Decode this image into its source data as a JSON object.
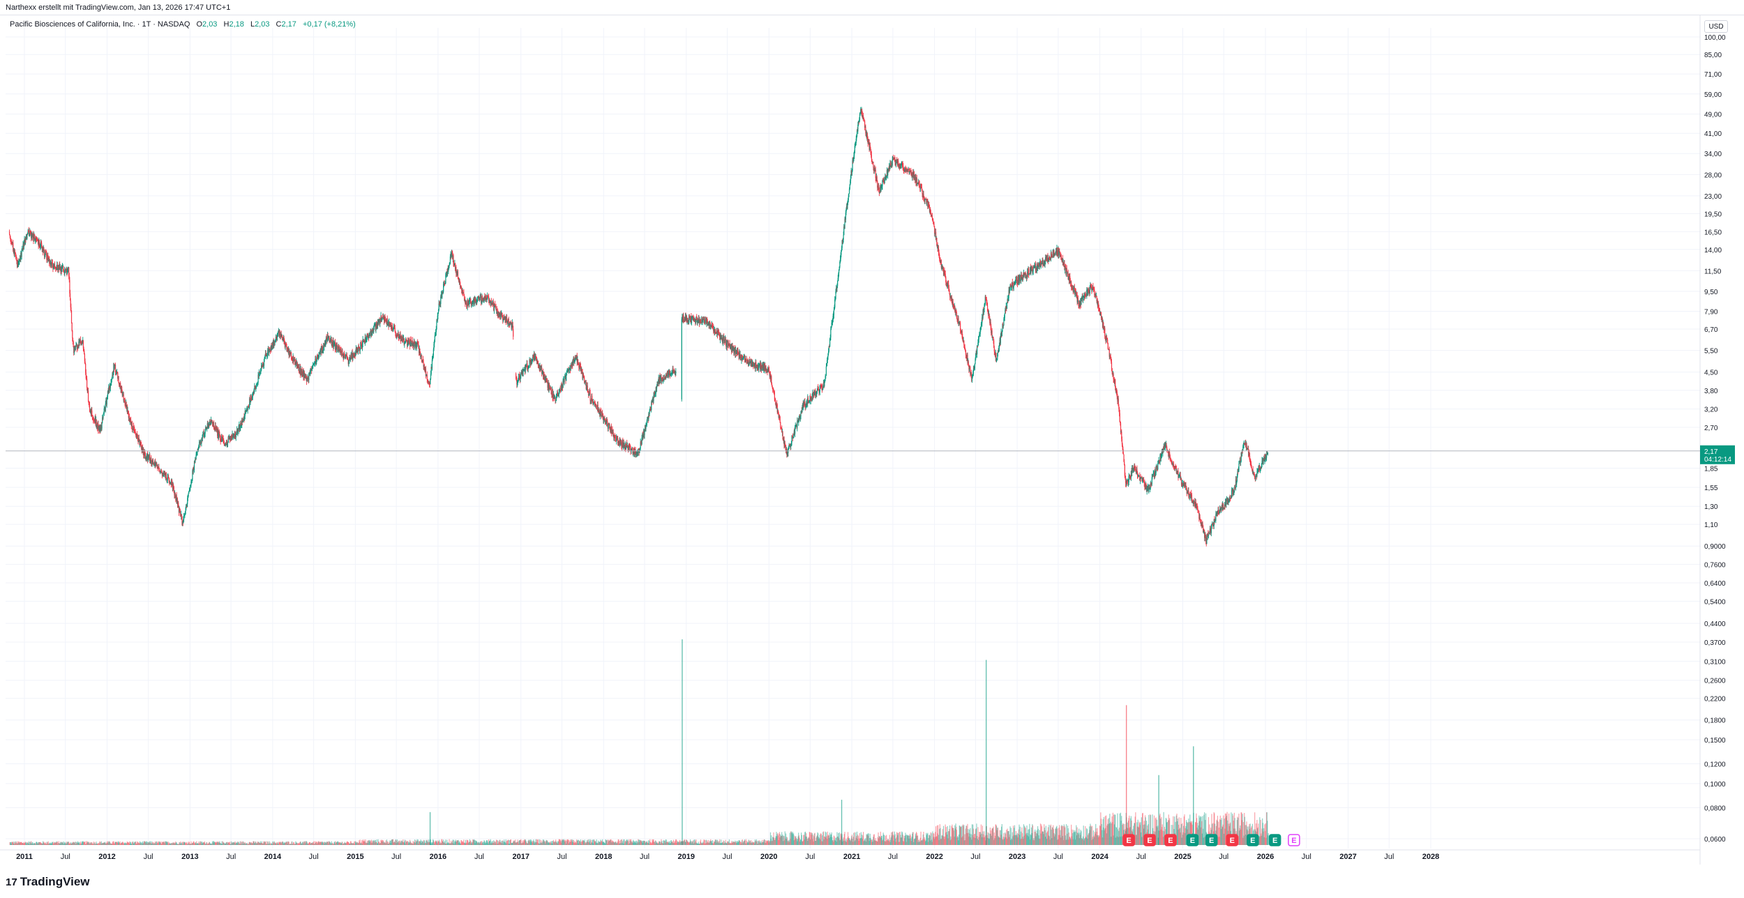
{
  "header": {
    "credit": "Narthexx erstellt mit TradingView.com, Jan 13, 2026 17:47 UTC+1"
  },
  "legend": {
    "symbol": "Pacific Biosciences of California, Inc. · 1T · NASDAQ",
    "open_label": "O",
    "open_value": "2,03",
    "high_label": "H",
    "high_value": "2,18",
    "low_label": "L",
    "low_value": "2,03",
    "close_label": "C",
    "close_value": "2,17",
    "change": "+0,17 (+8,21%)"
  },
  "currency": "USD",
  "price_tag": {
    "value": "2,17",
    "countdown": "04:12:14"
  },
  "footer": {
    "logo_mark": "17",
    "brand": "TradingView"
  },
  "colors": {
    "up": "#089981",
    "down": "#f23645",
    "grid": "#f0f3fa",
    "current_line": "#9598a1",
    "tag_bg": "#089981",
    "earnings_up": "#089981",
    "earnings_down": "#f23645",
    "earnings_next": "#e040fb"
  },
  "chart_data": {
    "type": "candlestick",
    "scale": "log",
    "ylim": [
      0.06,
      105
    ],
    "y_ticks": [
      "100,00",
      "85,00",
      "71,00",
      "59,00",
      "49,00",
      "41,00",
      "34,00",
      "28,00",
      "23,00",
      "19,50",
      "16,50",
      "14,00",
      "11,50",
      "9,50",
      "7,90",
      "6,70",
      "5,50",
      "4,50",
      "3,80",
      "3,20",
      "2,70",
      "1,85",
      "1,55",
      "1,30",
      "1,10",
      "0,9000",
      "0,7600",
      "0,6400",
      "0,5400",
      "0,4400",
      "0,3700",
      "0,3100",
      "0,2600",
      "0,2200",
      "0,1800",
      "0,1500",
      "0,1200",
      "0,1000",
      "0,0800",
      "0,0600"
    ],
    "x_range": [
      "2011-01-01",
      "2028-07-01"
    ],
    "x_ticks": [
      {
        "label": "2011",
        "date": "2011-01-01",
        "bold": true
      },
      {
        "label": "Jul",
        "date": "2011-07-01",
        "bold": false
      },
      {
        "label": "2012",
        "date": "2012-01-01",
        "bold": true
      },
      {
        "label": "Jul",
        "date": "2012-07-01",
        "bold": false
      },
      {
        "label": "2013",
        "date": "2013-01-01",
        "bold": true
      },
      {
        "label": "Jul",
        "date": "2013-07-01",
        "bold": false
      },
      {
        "label": "2014",
        "date": "2014-01-01",
        "bold": true
      },
      {
        "label": "Jul",
        "date": "2014-07-01",
        "bold": false
      },
      {
        "label": "2015",
        "date": "2015-01-01",
        "bold": true
      },
      {
        "label": "Jul",
        "date": "2015-07-01",
        "bold": false
      },
      {
        "label": "2016",
        "date": "2016-01-01",
        "bold": true
      },
      {
        "label": "Jul",
        "date": "2016-07-01",
        "bold": false
      },
      {
        "label": "2017",
        "date": "2017-01-01",
        "bold": true
      },
      {
        "label": "Jul",
        "date": "2017-07-01",
        "bold": false
      },
      {
        "label": "2018",
        "date": "2018-01-01",
        "bold": true
      },
      {
        "label": "Jul",
        "date": "2018-07-01",
        "bold": false
      },
      {
        "label": "2019",
        "date": "2019-01-01",
        "bold": true
      },
      {
        "label": "Jul",
        "date": "2019-07-01",
        "bold": false
      },
      {
        "label": "2020",
        "date": "2020-01-01",
        "bold": true
      },
      {
        "label": "Jul",
        "date": "2020-07-01",
        "bold": false
      },
      {
        "label": "2021",
        "date": "2021-01-01",
        "bold": true
      },
      {
        "label": "Jul",
        "date": "2021-07-01",
        "bold": false
      },
      {
        "label": "2022",
        "date": "2022-01-01",
        "bold": true
      },
      {
        "label": "Jul",
        "date": "2022-07-01",
        "bold": false
      },
      {
        "label": "2023",
        "date": "2023-01-01",
        "bold": true
      },
      {
        "label": "Jul",
        "date": "2023-07-01",
        "bold": false
      },
      {
        "label": "2024",
        "date": "2024-01-01",
        "bold": true
      },
      {
        "label": "Jul",
        "date": "2024-07-01",
        "bold": false
      },
      {
        "label": "2025",
        "date": "2025-01-01",
        "bold": true
      },
      {
        "label": "Jul",
        "date": "2025-07-01",
        "bold": false
      },
      {
        "label": "2026",
        "date": "2026-01-01",
        "bold": true
      },
      {
        "label": "Jul",
        "date": "2026-07-01",
        "bold": false
      },
      {
        "label": "2027",
        "date": "2027-01-01",
        "bold": true
      },
      {
        "label": "Jul",
        "date": "2027-07-01",
        "bold": false
      },
      {
        "label": "2028",
        "date": "2028-01-01",
        "bold": true
      }
    ],
    "price_path": [
      [
        "2010-10-27",
        16.5
      ],
      [
        "2010-12-01",
        12.0
      ],
      [
        "2011-01-15",
        16.5
      ],
      [
        "2011-03-15",
        14.5
      ],
      [
        "2011-05-01",
        12.0
      ],
      [
        "2011-07-15",
        11.5
      ],
      [
        "2011-08-05",
        5.5
      ],
      [
        "2011-09-15",
        6.0
      ],
      [
        "2011-10-15",
        3.2
      ],
      [
        "2011-12-01",
        2.6
      ],
      [
        "2012-02-01",
        4.8
      ],
      [
        "2012-04-15",
        2.8
      ],
      [
        "2012-06-15",
        2.1
      ],
      [
        "2012-08-15",
        1.85
      ],
      [
        "2012-10-15",
        1.6
      ],
      [
        "2012-12-01",
        1.1
      ],
      [
        "2013-02-01",
        2.2
      ],
      [
        "2013-04-01",
        2.9
      ],
      [
        "2013-06-01",
        2.3
      ],
      [
        "2013-08-01",
        2.6
      ],
      [
        "2013-10-01",
        3.6
      ],
      [
        "2013-12-01",
        5.2
      ],
      [
        "2014-02-01",
        6.5
      ],
      [
        "2014-04-01",
        5.0
      ],
      [
        "2014-06-01",
        4.2
      ],
      [
        "2014-09-01",
        6.2
      ],
      [
        "2014-12-01",
        5.0
      ],
      [
        "2015-03-01",
        6.3
      ],
      [
        "2015-05-01",
        7.5
      ],
      [
        "2015-08-01",
        6.0
      ],
      [
        "2015-10-01",
        5.8
      ],
      [
        "2015-11-25",
        4.0
      ],
      [
        "2016-01-01",
        8.0
      ],
      [
        "2016-03-01",
        13.5
      ],
      [
        "2016-05-01",
        8.5
      ],
      [
        "2016-08-01",
        9.0
      ],
      [
        "2016-10-01",
        7.6
      ],
      [
        "2016-11-25",
        6.9
      ],
      [
        "2016-12-10",
        4.1
      ],
      [
        "2017-03-01",
        5.2
      ],
      [
        "2017-06-01",
        3.5
      ],
      [
        "2017-09-01",
        5.2
      ],
      [
        "2017-11-01",
        3.6
      ],
      [
        "2018-03-01",
        2.4
      ],
      [
        "2018-06-01",
        2.1
      ],
      [
        "2018-09-01",
        4.2
      ],
      [
        "2018-11-15",
        4.6
      ],
      [
        "2018-12-10",
        3.6
      ],
      [
        "2018-12-12",
        7.4
      ],
      [
        "2019-04-01",
        7.2
      ],
      [
        "2019-07-01",
        5.8
      ],
      [
        "2019-10-01",
        4.9
      ],
      [
        "2020-01-01",
        4.6
      ],
      [
        "2020-03-20",
        2.1
      ],
      [
        "2020-06-01",
        3.3
      ],
      [
        "2020-09-01",
        4.0
      ],
      [
        "2020-12-01",
        18.0
      ],
      [
        "2021-01-20",
        40.0
      ],
      [
        "2021-02-10",
        52.0
      ],
      [
        "2021-05-01",
        24.0
      ],
      [
        "2021-07-01",
        32.0
      ],
      [
        "2021-10-01",
        28.0
      ],
      [
        "2021-12-15",
        20.0
      ],
      [
        "2022-02-01",
        12.0
      ],
      [
        "2022-05-01",
        6.5
      ],
      [
        "2022-06-15",
        4.2
      ],
      [
        "2022-08-15",
        9.0
      ],
      [
        "2022-10-01",
        5.0
      ],
      [
        "2022-12-01",
        10.0
      ],
      [
        "2023-03-01",
        11.5
      ],
      [
        "2023-07-01",
        13.8
      ],
      [
        "2023-10-01",
        8.5
      ],
      [
        "2023-12-01",
        10.0
      ],
      [
        "2024-02-01",
        6.0
      ],
      [
        "2024-03-20",
        3.5
      ],
      [
        "2024-04-25",
        1.6
      ],
      [
        "2024-06-01",
        1.85
      ],
      [
        "2024-08-01",
        1.5
      ],
      [
        "2024-10-15",
        2.3
      ],
      [
        "2024-12-01",
        1.8
      ],
      [
        "2025-03-01",
        1.3
      ],
      [
        "2025-04-15",
        0.95
      ],
      [
        "2025-06-01",
        1.2
      ],
      [
        "2025-08-15",
        1.5
      ],
      [
        "2025-10-01",
        2.4
      ],
      [
        "2025-11-15",
        1.7
      ],
      [
        "2026-01-13",
        2.17
      ]
    ],
    "last_close": 2.17,
    "volume_spikes": [
      {
        "date": "2015-11-25",
        "height": 0.16,
        "dir": "up"
      },
      {
        "date": "2018-12-12",
        "height": 1.0,
        "dir": "up"
      },
      {
        "date": "2020-11-15",
        "height": 0.22,
        "dir": "up"
      },
      {
        "date": "2022-08-15",
        "height": 0.9,
        "dir": "up"
      },
      {
        "date": "2024-04-25",
        "height": 0.68,
        "dir": "down"
      },
      {
        "date": "2025-02-15",
        "height": 0.48,
        "dir": "up"
      },
      {
        "date": "2024-09-15",
        "height": 0.34,
        "dir": "up"
      }
    ],
    "earnings_markers": [
      {
        "date": "2024-05-08",
        "label": "E",
        "dir": "down"
      },
      {
        "date": "2024-08-08",
        "label": "E",
        "dir": "down"
      },
      {
        "date": "2024-11-08",
        "label": "E",
        "dir": "down"
      },
      {
        "date": "2025-02-13",
        "label": "E",
        "dir": "up"
      },
      {
        "date": "2025-05-08",
        "label": "E",
        "dir": "up"
      },
      {
        "date": "2025-08-07",
        "label": "E",
        "dir": "down"
      },
      {
        "date": "2025-11-06",
        "label": "E",
        "dir": "up"
      },
      {
        "date": "2026-02-12",
        "label": "E",
        "dir": "up"
      },
      {
        "date": "2026-05-07",
        "label": "E",
        "dir": "next"
      }
    ]
  }
}
